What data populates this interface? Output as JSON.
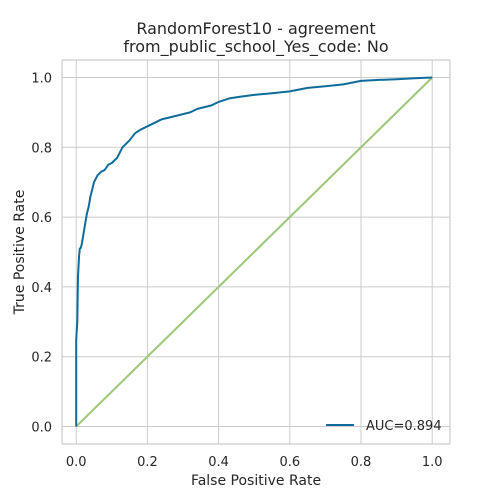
{
  "chart_data": {
    "type": "line",
    "title_line1": "RandomForest10 - agreement",
    "title_line2": "from_public_school_Yes_code: No",
    "xlabel": "False Positive Rate",
    "ylabel": "True Positive Rate",
    "xlim": [
      -0.04,
      1.05
    ],
    "ylim": [
      -0.05,
      1.05
    ],
    "xticks": [
      0.0,
      0.2,
      0.4,
      0.6,
      0.8,
      1.0
    ],
    "yticks": [
      0.0,
      0.2,
      0.4,
      0.6,
      0.8,
      1.0
    ],
    "xtick_labels": [
      "0.0",
      "0.2",
      "0.4",
      "0.6",
      "0.8",
      "1.0"
    ],
    "ytick_labels": [
      "0.0",
      "0.2",
      "0.4",
      "0.6",
      "0.8",
      "1.0"
    ],
    "grid": true,
    "legend_position": "bottom-right",
    "legend_label": "AUC=0.894",
    "colors": {
      "roc": "#0e6c9a",
      "diagonal": "#9dc779",
      "grid": "#cccccc"
    },
    "series": [
      {
        "x": [
          0.0,
          0.0,
          0.003,
          0.004,
          0.005,
          0.008,
          0.01,
          0.012,
          0.015,
          0.02,
          0.025,
          0.03,
          0.035,
          0.04,
          0.045,
          0.05,
          0.055,
          0.06,
          0.07,
          0.08,
          0.09,
          0.1,
          0.115,
          0.13,
          0.15,
          0.165,
          0.18,
          0.2,
          0.22,
          0.24,
          0.26,
          0.28,
          0.3,
          0.32,
          0.34,
          0.36,
          0.38,
          0.4,
          0.43,
          0.46,
          0.5,
          0.55,
          0.6,
          0.65,
          0.7,
          0.75,
          0.8,
          0.85,
          0.9,
          0.95,
          1.0
        ],
        "y": [
          0.0,
          0.25,
          0.3,
          0.38,
          0.43,
          0.49,
          0.51,
          0.51,
          0.52,
          0.55,
          0.58,
          0.61,
          0.63,
          0.66,
          0.68,
          0.7,
          0.71,
          0.72,
          0.73,
          0.735,
          0.75,
          0.755,
          0.77,
          0.8,
          0.82,
          0.84,
          0.85,
          0.86,
          0.87,
          0.88,
          0.885,
          0.89,
          0.895,
          0.9,
          0.91,
          0.915,
          0.92,
          0.93,
          0.94,
          0.945,
          0.95,
          0.955,
          0.96,
          0.97,
          0.975,
          0.98,
          0.99,
          0.993,
          0.995,
          0.998,
          1.0
        ]
      },
      {
        "x": [
          0.0,
          1.0
        ],
        "y": [
          0.0,
          1.0
        ]
      }
    ]
  }
}
